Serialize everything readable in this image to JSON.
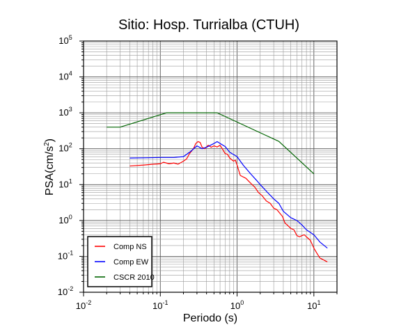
{
  "chart_data": {
    "type": "line",
    "title": "Sitio: Hosp. Turrialba (CTUH)",
    "xlabel": "Periodo (s)",
    "ylabel": {
      "prefix": "PSA(cm/s",
      "sup": "2",
      "suffix": ")"
    },
    "x_scale": "log",
    "y_scale": "log",
    "xlim": [
      0.01,
      20
    ],
    "ylim": [
      0.01,
      100000
    ],
    "grid": true,
    "legend_position": "bottom-left",
    "x_ticks": [
      {
        "base": "10",
        "exp": "-2",
        "value": 0.01
      },
      {
        "base": "10",
        "exp": "-1",
        "value": 0.1
      },
      {
        "base": "10",
        "exp": "0",
        "value": 1
      },
      {
        "base": "10",
        "exp": "1",
        "value": 10
      }
    ],
    "y_ticks": [
      {
        "base": "10",
        "exp": "-2",
        "value": 0.01
      },
      {
        "base": "10",
        "exp": "-1",
        "value": 0.1
      },
      {
        "base": "10",
        "exp": "0",
        "value": 1
      },
      {
        "base": "10",
        "exp": "1",
        "value": 10
      },
      {
        "base": "10",
        "exp": "2",
        "value": 100
      },
      {
        "base": "10",
        "exp": "3",
        "value": 1000
      },
      {
        "base": "10",
        "exp": "4",
        "value": 10000
      },
      {
        "base": "10",
        "exp": "5",
        "value": 100000
      }
    ],
    "series": [
      {
        "name": "Comp NS",
        "color": "#ff0000",
        "points": [
          [
            0.04,
            33
          ],
          [
            0.06,
            35
          ],
          [
            0.08,
            37
          ],
          [
            0.1,
            38
          ],
          [
            0.11,
            42
          ],
          [
            0.13,
            38
          ],
          [
            0.15,
            40
          ],
          [
            0.17,
            37
          ],
          [
            0.2,
            45
          ],
          [
            0.22,
            52
          ],
          [
            0.24,
            73
          ],
          [
            0.27,
            100
          ],
          [
            0.29,
            140
          ],
          [
            0.31,
            158
          ],
          [
            0.33,
            150
          ],
          [
            0.35,
            110
          ],
          [
            0.38,
            100
          ],
          [
            0.42,
            125
          ],
          [
            0.46,
            110
          ],
          [
            0.5,
            120
          ],
          [
            0.55,
            112
          ],
          [
            0.6,
            125
          ],
          [
            0.65,
            95
          ],
          [
            0.7,
            73
          ],
          [
            0.75,
            70
          ],
          [
            0.8,
            55
          ],
          [
            0.9,
            45
          ],
          [
            0.95,
            48
          ],
          [
            1.0,
            35
          ],
          [
            1.1,
            18
          ],
          [
            1.3,
            15
          ],
          [
            1.5,
            11
          ],
          [
            1.7,
            8.5
          ],
          [
            1.9,
            6
          ],
          [
            2.1,
            5
          ],
          [
            2.4,
            3.5
          ],
          [
            2.7,
            3.0
          ],
          [
            3.0,
            2.2
          ],
          [
            3.3,
            2.0
          ],
          [
            3.6,
            1.6
          ],
          [
            3.9,
            1.3
          ],
          [
            4.2,
            0.85
          ],
          [
            4.5,
            0.75
          ],
          [
            5.0,
            0.6
          ],
          [
            5.5,
            0.55
          ],
          [
            6.0,
            0.38
          ],
          [
            6.5,
            0.35
          ],
          [
            7.0,
            0.38
          ],
          [
            7.5,
            0.4
          ],
          [
            8.0,
            0.35
          ],
          [
            9.0,
            0.28
          ],
          [
            10.0,
            0.17
          ],
          [
            11.0,
            0.12
          ],
          [
            12.0,
            0.09
          ],
          [
            15.0,
            0.07
          ]
        ]
      },
      {
        "name": "Comp EW",
        "color": "#0000ff",
        "points": [
          [
            0.04,
            55
          ],
          [
            0.07,
            56
          ],
          [
            0.1,
            57
          ],
          [
            0.15,
            57
          ],
          [
            0.2,
            60
          ],
          [
            0.25,
            85
          ],
          [
            0.3,
            120
          ],
          [
            0.35,
            100
          ],
          [
            0.4,
            110
          ],
          [
            0.5,
            140
          ],
          [
            0.55,
            158
          ],
          [
            0.6,
            140
          ],
          [
            0.7,
            115
          ],
          [
            0.8,
            80
          ],
          [
            1.0,
            60
          ],
          [
            1.2,
            35
          ],
          [
            1.5,
            20
          ],
          [
            1.8,
            13
          ],
          [
            2.0,
            10
          ],
          [
            2.5,
            6
          ],
          [
            3.0,
            4
          ],
          [
            3.5,
            3
          ],
          [
            4.0,
            1.8
          ],
          [
            5.0,
            1.2
          ],
          [
            6.0,
            1.0
          ],
          [
            7.0,
            0.75
          ],
          [
            8.0,
            0.55
          ],
          [
            10.0,
            0.4
          ],
          [
            12.0,
            0.25
          ],
          [
            15.0,
            0.17
          ]
        ]
      },
      {
        "name": "CSCR 2010",
        "color": "#006400",
        "points": [
          [
            0.02,
            400
          ],
          [
            0.03,
            400
          ],
          [
            0.12,
            1000
          ],
          [
            0.55,
            1000
          ],
          [
            3.5,
            160
          ],
          [
            10.0,
            20
          ]
        ]
      }
    ]
  }
}
